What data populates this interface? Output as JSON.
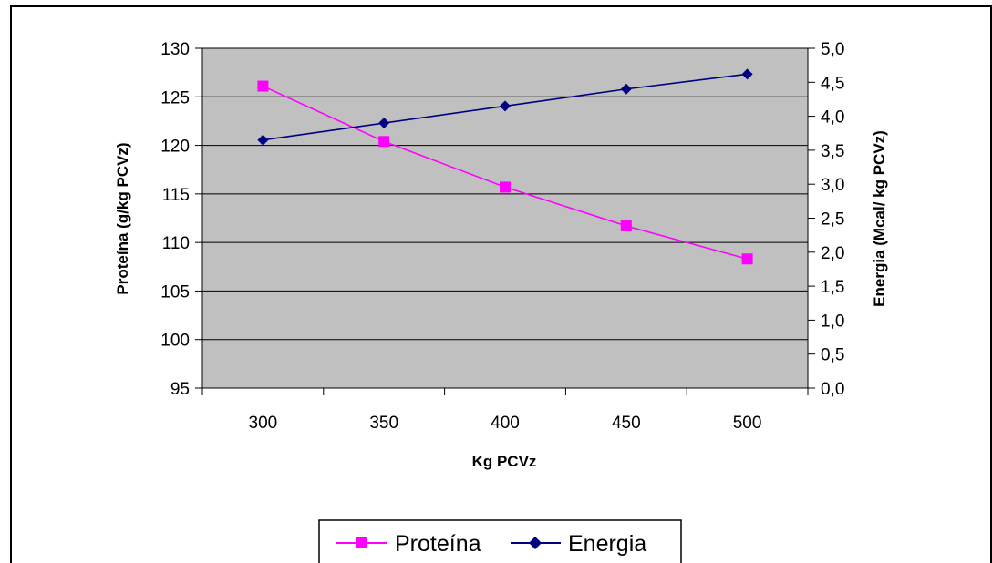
{
  "chart_data": {
    "type": "line",
    "x": [
      300,
      350,
      400,
      450,
      500
    ],
    "xlabel": "Kg PCVz",
    "ylabel_left": "Proteína (g/kg PCVz)",
    "ylabel_right": "Energia (Mcal/ kg PCVz)",
    "ylim_left": [
      95,
      130
    ],
    "ylim_right": [
      0,
      5
    ],
    "yticks_left": [
      "95",
      "100",
      "105",
      "110",
      "115",
      "120",
      "125",
      "130"
    ],
    "yticks_right": [
      "0,0",
      "0,5",
      "1,0",
      "1,5",
      "2,0",
      "2,5",
      "3,0",
      "3,5",
      "4,0",
      "4,5",
      "5,0"
    ],
    "xticks": [
      "300",
      "350",
      "400",
      "450",
      "500"
    ],
    "grid": "horizontal",
    "plot_background": "#C0C0C0",
    "legend_position": "bottom",
    "series": [
      {
        "name": "Proteína",
        "axis": "left",
        "color": "#FF00FF",
        "marker": "square",
        "values": [
          126.1,
          120.4,
          115.7,
          111.7,
          108.3
        ]
      },
      {
        "name": "Energia",
        "axis": "right",
        "color": "#000080",
        "marker": "diamond",
        "values": [
          3.65,
          3.9,
          4.15,
          4.4,
          4.62
        ]
      }
    ]
  }
}
